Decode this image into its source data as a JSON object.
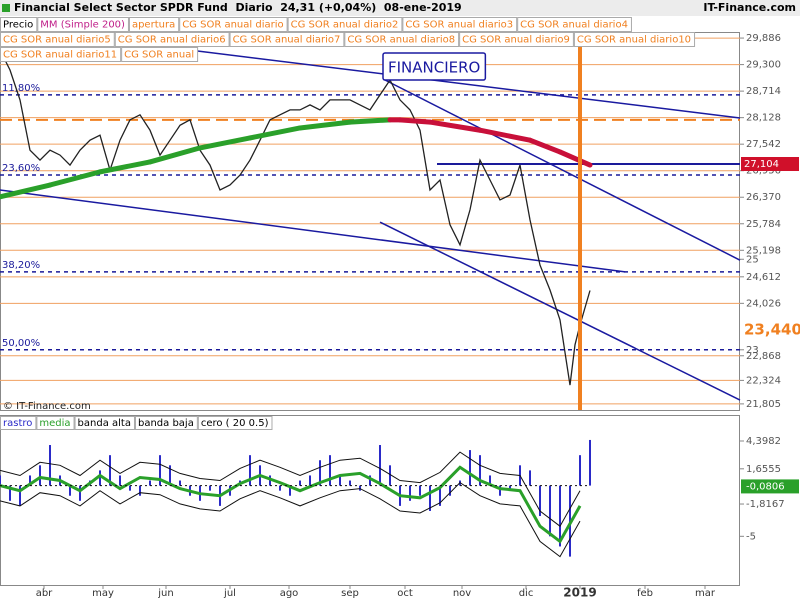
{
  "header": {
    "title": "Financial Select Sector SPDR Fund  Diario  24,31 (+0,04%)  08-ene-2019",
    "site": "IT-Finance.com"
  },
  "chart_data": [
    {
      "type": "line",
      "annotation": "FINANCIERO",
      "copyright": "© IT-Finance.com",
      "xlim": [
        0,
        370
      ],
      "ylim": [
        21.67,
        30.02
      ],
      "marker_x": 290,
      "indicators": [
        "apertura",
        "CG SOR anual diario",
        "CG SOR anual diario2",
        "CG SOR anual diario3",
        "CG SOR anual diario4",
        "CG SOR anual diario5",
        "CG SOR anual diario6",
        "CG SOR anual diario7",
        "CG SOR anual diario8",
        "CG SOR anual diario9",
        "CG SOR anual diario10",
        "CG SOR anual diario11",
        "CG SOR anual"
      ],
      "indicator_color": "#f08020",
      "yticks": [
        {
          "value": 29.886,
          "label": "29,886"
        },
        {
          "value": 29.3,
          "label": "29,300"
        },
        {
          "value": 28.714,
          "label": "28,714"
        },
        {
          "value": 28.128,
          "label": "28,128"
        },
        {
          "value": 27.542,
          "label": "27,542"
        },
        {
          "value": 26.956,
          "label": "26,956"
        },
        {
          "value": 26.37,
          "label": "26,370"
        },
        {
          "value": 25.784,
          "label": "25,784"
        },
        {
          "value": 25.198,
          "label": "25,198"
        },
        25,
        {
          "value": 24.612,
          "label": "24,612"
        },
        {
          "value": 24.026,
          "label": "24,026"
        },
        23,
        {
          "value": 22.868,
          "label": "22,868"
        },
        {
          "value": 22.324,
          "label": "22,324"
        },
        {
          "value": 21.805,
          "label": "21,805"
        }
      ],
      "grid": true,
      "grid_color": "#f0a060",
      "current_labels": [
        {
          "value": 27.104,
          "label": "27,104",
          "bg": "#d0102a",
          "fg": "#ffffff"
        },
        {
          "value": 23.44,
          "label": "23,440",
          "bg": "#ffffff",
          "fg": "#f08020"
        }
      ],
      "levels": [
        {
          "value": 28.63,
          "label": "11,80%"
        },
        {
          "value": 26.86,
          "label": "23,60%"
        },
        {
          "value": 24.72,
          "label": "38,20%"
        },
        {
          "value": 23.0,
          "label": "50,00%"
        }
      ],
      "level_color": "#1a1a9a",
      "hlines": [
        {
          "value": 28.08,
          "color": "#f08020",
          "x0": 0
        },
        {
          "value": 27.104,
          "color": "#1a1a9a",
          "x0": 218.5
        }
      ],
      "trend_lines": [
        {
          "x": [
            75,
            370
          ],
          "y": [
            29.73,
            28.12
          ]
        },
        {
          "x": [
            0,
            312.5
          ],
          "y": [
            26.53,
            24.72
          ]
        },
        {
          "x": [
            192.5,
            370
          ],
          "y": [
            28.96,
            24.98
          ]
        },
        {
          "x": [
            190,
            370
          ],
          "y": [
            25.82,
            21.89
          ]
        }
      ],
      "series": [
        {
          "name": "Precio",
          "color": "#222222",
          "x": [
            0,
            5,
            10,
            15,
            20,
            25,
            30,
            35,
            40,
            45,
            50,
            55,
            60,
            65,
            70,
            75,
            80,
            85,
            90,
            95,
            100,
            105,
            110,
            115,
            120,
            125,
            130,
            135,
            140,
            145,
            150,
            155,
            160,
            165,
            170,
            175,
            180,
            185,
            190,
            195,
            200,
            205,
            210,
            215,
            220,
            225,
            230,
            235,
            240,
            245,
            250,
            255,
            260,
            265,
            270,
            275,
            280,
            285,
            287.5,
            290,
            295
          ],
          "values": [
            29.62,
            29.18,
            28.52,
            27.41,
            27.19,
            27.41,
            27.3,
            27.08,
            27.41,
            27.63,
            27.74,
            26.97,
            27.63,
            28.08,
            28.19,
            27.85,
            27.3,
            27.63,
            27.96,
            28.08,
            27.41,
            27.08,
            26.53,
            26.64,
            26.86,
            27.19,
            27.63,
            28.08,
            28.19,
            28.3,
            28.3,
            28.41,
            28.3,
            28.52,
            28.52,
            28.52,
            28.41,
            28.3,
            28.63,
            28.96,
            28.52,
            28.3,
            27.85,
            26.53,
            26.75,
            25.76,
            25.32,
            26.09,
            27.19,
            26.75,
            26.31,
            26.42,
            27.08,
            25.87,
            24.87,
            24.32,
            23.66,
            22.22,
            23.11,
            23.55,
            24.31
          ]
        },
        {
          "name": "MM (Simple 200)",
          "color": "#c0208a",
          "x": [
            0,
            25,
            50,
            75,
            100,
            125,
            150,
            175,
            195,
            200,
            215,
            240,
            265,
            280,
            295
          ],
          "values": [
            26.38,
            26.64,
            26.93,
            27.15,
            27.46,
            27.68,
            27.9,
            28.03,
            28.08,
            28.08,
            28.03,
            27.85,
            27.63,
            27.37,
            27.08
          ],
          "colors": [
            "#2aa02a",
            "#2aa02a",
            "#2aa02a",
            "#2aa02a",
            "#2aa02a",
            "#2aa02a",
            "#2aa02a",
            "#2aa02a",
            "#2aa02a",
            "#c8103a",
            "#c8103a",
            "#c8103a",
            "#c8103a",
            "#c8103a",
            "#c8103a"
          ]
        }
      ]
    },
    {
      "type": "bar",
      "xlim": [
        0,
        370
      ],
      "ylim": [
        -9.8,
        6.96
      ],
      "xticks": [
        {
          "value": 22,
          "label": "abr"
        },
        {
          "value": 51.5,
          "label": "may"
        },
        {
          "value": 83,
          "label": "jun"
        },
        {
          "value": 115,
          "label": "jul"
        },
        {
          "value": 144.5,
          "label": "ago"
        },
        {
          "value": 175,
          "label": "sep"
        },
        {
          "value": 202.5,
          "label": "oct"
        },
        {
          "value": 231,
          "label": "nov"
        },
        {
          "value": 263,
          "label": "dic"
        },
        {
          "value": 290,
          "label": "2019",
          "bold": true
        },
        {
          "value": 322.5,
          "label": "feb"
        },
        {
          "value": 352.5,
          "label": "mar"
        }
      ],
      "yticks": [
        {
          "value": 4.3982,
          "label": "4,3982"
        },
        {
          "value": 1.6555,
          "label": "1,6555"
        },
        {
          "value": -1.8167,
          "label": "-1,8167"
        },
        -5
      ],
      "current_labels": [
        {
          "value": -0.0806,
          "label": "-0,0806",
          "bg": "#2aa02a",
          "fg": "#ffffff"
        }
      ],
      "series": [
        {
          "name": "rastro",
          "style": "bar",
          "color": "#2a2ac8",
          "x": [
            0,
            5,
            10,
            15,
            20,
            25,
            30,
            35,
            40,
            45,
            50,
            55,
            60,
            65,
            70,
            75,
            80,
            85,
            90,
            95,
            100,
            105,
            110,
            115,
            120,
            125,
            130,
            135,
            140,
            145,
            150,
            155,
            160,
            165,
            170,
            175,
            180,
            185,
            190,
            195,
            200,
            205,
            210,
            215,
            220,
            225,
            230,
            235,
            240,
            245,
            250,
            255,
            260,
            265,
            270,
            275,
            280,
            285,
            290,
            295
          ],
          "values": [
            1,
            -1.5,
            -2,
            1,
            2,
            4,
            1,
            -1,
            -1.5,
            0.5,
            1.5,
            3,
            1,
            -0.5,
            -1,
            0.5,
            3,
            2,
            0.5,
            -1,
            -1.5,
            -0.5,
            -2,
            -1,
            0.5,
            3,
            2,
            1,
            -0.5,
            -1,
            0.5,
            1,
            2.5,
            3,
            1,
            0.5,
            -0.5,
            1,
            4,
            2,
            -2,
            -1.5,
            -1,
            -2.5,
            -2,
            -1,
            0.5,
            3.5,
            3,
            1,
            -1,
            -0.5,
            2,
            1.5,
            -3,
            -5,
            -6,
            -7,
            3,
            4.5
          ]
        },
        {
          "name": "media",
          "style": "line",
          "color": "#2aa02a",
          "x": [
            0,
            10,
            20,
            30,
            40,
            50,
            60,
            70,
            80,
            90,
            100,
            110,
            120,
            130,
            140,
            150,
            160,
            170,
            180,
            190,
            200,
            210,
            220,
            230,
            240,
            250,
            260,
            270,
            280,
            290
          ],
          "values": [
            0,
            -0.5,
            0.8,
            0.5,
            -0.5,
            1,
            -0.3,
            0.8,
            0.6,
            -0.3,
            -0.8,
            -1,
            0.2,
            1,
            0.3,
            -0.5,
            0.3,
            1,
            1.2,
            0.2,
            -1,
            -1.2,
            -0.2,
            1.8,
            0.5,
            -0.3,
            -0.5,
            -4,
            -5.5,
            -2
          ]
        },
        {
          "name": "banda alta",
          "style": "line",
          "color": "#111111",
          "x": [
            0,
            10,
            20,
            30,
            40,
            50,
            60,
            70,
            80,
            90,
            100,
            110,
            120,
            130,
            140,
            150,
            160,
            170,
            180,
            190,
            200,
            210,
            220,
            230,
            240,
            250,
            260,
            270,
            280,
            290
          ],
          "values": [
            1.5,
            1,
            2.3,
            2,
            1,
            2.5,
            1.2,
            2.3,
            2.1,
            1.2,
            0.7,
            0.5,
            1.7,
            2.5,
            1.8,
            1,
            1.8,
            2.5,
            2.7,
            1.7,
            0.5,
            0.3,
            1.3,
            3.3,
            2,
            1.2,
            1,
            -2.5,
            -4,
            -0.5
          ]
        },
        {
          "name": "banda baja",
          "style": "line",
          "color": "#111111",
          "x": [
            0,
            10,
            20,
            30,
            40,
            50,
            60,
            70,
            80,
            90,
            100,
            110,
            120,
            130,
            140,
            150,
            160,
            170,
            180,
            190,
            200,
            210,
            220,
            230,
            240,
            250,
            260,
            270,
            280,
            290
          ],
          "values": [
            -1.5,
            -2,
            -0.7,
            -1,
            -2,
            -0.5,
            -1.8,
            -0.7,
            -0.9,
            -1.8,
            -2.3,
            -2.5,
            -1.3,
            -0.5,
            -1.2,
            -2,
            -1.2,
            -0.5,
            -0.3,
            -1.3,
            -2.5,
            -2.7,
            -1.7,
            0.3,
            -1,
            -1.8,
            -2,
            -5.5,
            -7,
            -3.5
          ]
        },
        {
          "name": "cero ( 20 0.5)",
          "style": "dotted",
          "color": "#111111",
          "x": [
            0,
            295
          ],
          "values": [
            0,
            0
          ]
        }
      ]
    }
  ]
}
